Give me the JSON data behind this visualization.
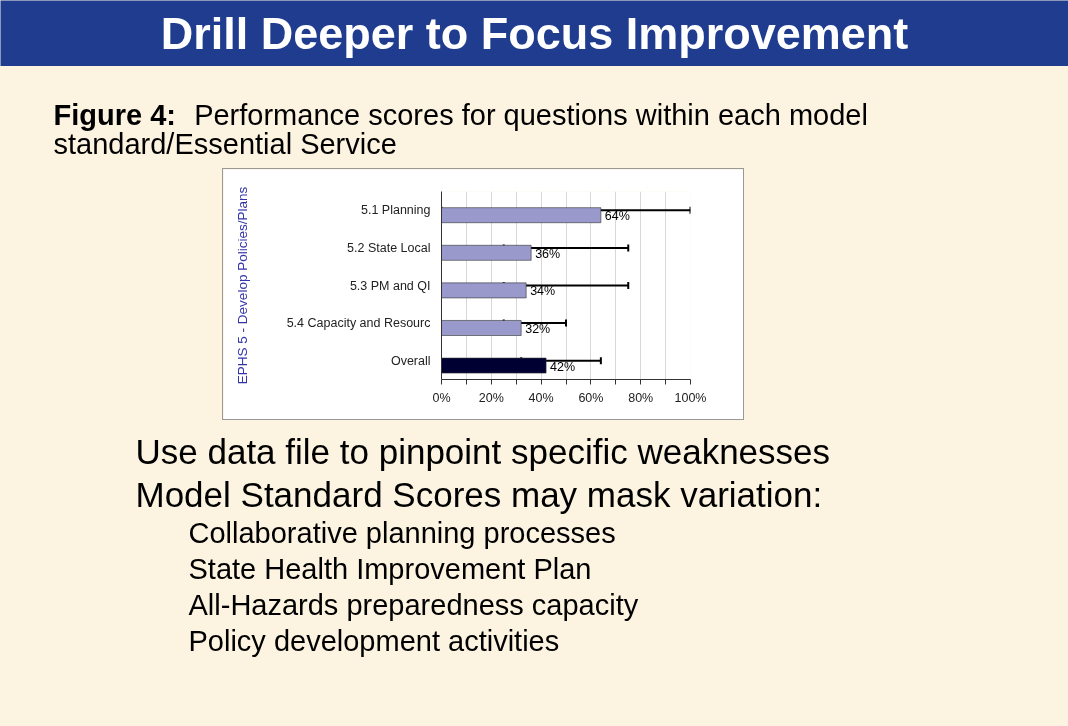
{
  "chart_data": {
    "type": "bar",
    "orientation": "horizontal",
    "title": "Drill Deeper to Focus Improvement",
    "subtitle": "Figure 4: Performance scores for questions within each model standard/Essential Service",
    "ylabel": "EPHS 5 - Develop Policies/Plans",
    "categories": [
      "5.1 Planning",
      "5.2 State Local",
      "5.3 PM and QI",
      "5.4 Capacity and Resourc",
      "Overall"
    ],
    "values": [
      64,
      36,
      34,
      32,
      42
    ],
    "colors": [
      "#9999cc",
      "#9999cc",
      "#9999cc",
      "#9999cc",
      "#000033"
    ],
    "errors": [
      [
        0,
        100
      ],
      [
        25,
        75
      ],
      [
        25,
        75
      ],
      [
        25,
        50
      ],
      [
        32,
        64
      ]
    ],
    "value_labels": [
      "64%",
      "36%",
      "34%",
      "32%",
      "42%"
    ],
    "xlim": [
      0,
      100
    ],
    "xticks": [
      {
        "value": 0,
        "label": "0%"
      },
      {
        "value": 10,
        "label": null
      },
      {
        "value": 20,
        "label": "20%"
      },
      {
        "value": 30,
        "label": null
      },
      {
        "value": 40,
        "label": "40%"
      },
      {
        "value": 50,
        "label": null
      },
      {
        "value": 60,
        "label": "60%"
      },
      {
        "value": 70,
        "label": null
      },
      {
        "value": 80,
        "label": "80%"
      },
      {
        "value": 90,
        "label": null
      },
      {
        "value": 100,
        "label": "100%"
      }
    ],
    "grid": "x",
    "annotations": [
      "Use data file to pinpoint specific weaknesses",
      "Model Standard Scores may mask variation:",
      "Collaborative planning processes",
      "State Health Improvement Plan",
      "All-Hazards preparedness capacity",
      "Policy development activities"
    ]
  }
}
